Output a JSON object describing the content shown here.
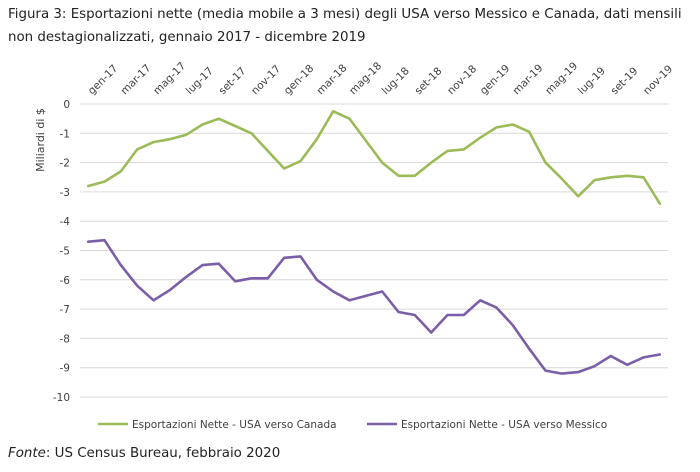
{
  "title": "Figura 3: Esportazioni nette (media mobile a 3 mesi) degli USA verso Messico e Canada, dati mensili non destagionalizzati, gennaio 2017 - dicembre 2019",
  "source": {
    "prefix": "Fonte",
    "text": ": US Census Bureau, febbraio 2020"
  },
  "chart_data": {
    "type": "line",
    "title": "",
    "xlabel": "",
    "ylabel": "Miliardi di $",
    "ylim": [
      -10,
      0
    ],
    "yticks": [
      0,
      -1,
      -2,
      -3,
      -4,
      -5,
      -6,
      -7,
      -8,
      -9,
      -10
    ],
    "grid": true,
    "legend": "bottom",
    "tick_labels": [
      "gen-17",
      "mar-17",
      "mag-17",
      "lug-17",
      "set-17",
      "nov-17",
      "gen-18",
      "mar-18",
      "mag-18",
      "lug-18",
      "set-18",
      "nov-18",
      "gen-19",
      "mar-19",
      "mag-19",
      "lug-19",
      "set-19",
      "nov-19"
    ],
    "series": [
      {
        "name": "Esportazioni Nette - USA verso Canada",
        "color": "#9bbb59",
        "values": [
          -2.8,
          -2.65,
          -2.3,
          -1.55,
          -1.3,
          -1.2,
          -1.05,
          -0.7,
          -0.5,
          -0.75,
          -1.0,
          -1.6,
          -2.2,
          -1.95,
          -1.2,
          -0.25,
          -0.5,
          -1.25,
          -2.0,
          -2.45,
          -2.45,
          -2.0,
          -1.6,
          -1.55,
          -1.15,
          -0.8,
          -0.7,
          -0.95,
          -2.0,
          -2.55,
          -3.15,
          -2.6,
          -2.5,
          -2.45,
          -2.5,
          -3.4
        ]
      },
      {
        "name": "Esportazioni Nette - USA verso Messico",
        "color": "#7a5ea8",
        "values": [
          -4.7,
          -4.65,
          -5.5,
          -6.2,
          -6.7,
          -6.35,
          -5.9,
          -5.5,
          -5.45,
          -6.05,
          -5.95,
          -5.95,
          -5.25,
          -5.2,
          -6.0,
          -6.4,
          -6.7,
          -6.55,
          -6.4,
          -7.1,
          -7.2,
          -7.8,
          -7.2,
          -7.2,
          -6.7,
          -6.95,
          -7.55,
          -8.35,
          -9.1,
          -9.2,
          -9.15,
          -8.95,
          -8.6,
          -8.9,
          -8.65,
          -8.55
        ]
      }
    ]
  }
}
